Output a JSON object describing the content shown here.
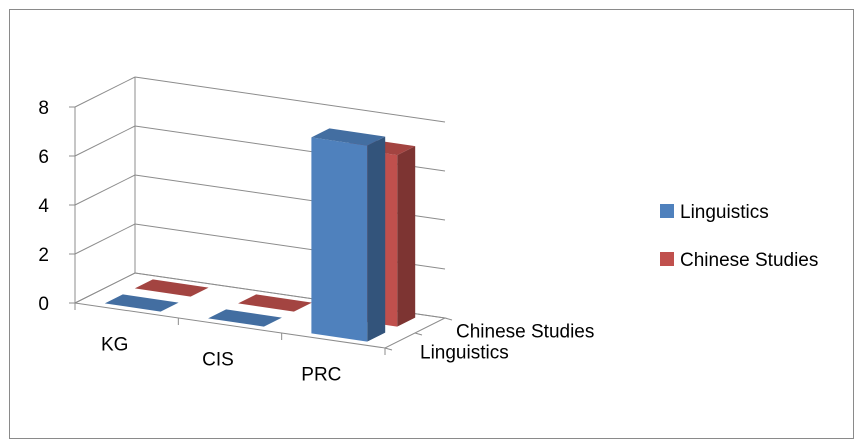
{
  "chart_data": {
    "type": "bar",
    "variant": "3d-column",
    "categories": [
      "KG",
      "CIS",
      "PRC"
    ],
    "series": [
      {
        "name": "Linguistics",
        "values": [
          0,
          0,
          8
        ],
        "color": "#4F81BD"
      },
      {
        "name": "Chinese Studies",
        "values": [
          0,
          0,
          7
        ],
        "color": "#C0504D"
      }
    ],
    "y_ticks": [
      "0",
      "2",
      "4",
      "6",
      "8"
    ],
    "ylim": [
      0,
      8
    ],
    "depth_labels": [
      "Linguistics",
      "Chinese Studies"
    ],
    "grid": true,
    "legend_position": "right"
  }
}
